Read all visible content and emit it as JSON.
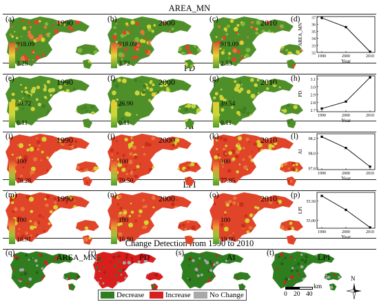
{
  "sections": [
    {
      "id": "area",
      "title": "AREA_MN",
      "panels": [
        {
          "label": "(a)",
          "year": "1990",
          "hi": "918.09",
          "lo": "3.26"
        },
        {
          "label": "(b)",
          "year": "2000",
          "hi": "918.09",
          "lo": "3.72"
        },
        {
          "label": "(c)",
          "year": "2010",
          "hi": "918.09",
          "lo": "2.53"
        }
      ],
      "chart_label": "(d)"
    },
    {
      "id": "pd",
      "title": "PD",
      "panels": [
        {
          "label": "(e)",
          "year": "1990",
          "hi": "30.72",
          "lo": "0.11"
        },
        {
          "label": "(f)",
          "year": "2000",
          "hi": "26.90",
          "lo": "0.11"
        },
        {
          "label": "(g)",
          "year": "2010",
          "hi": "39.54",
          "lo": "0.11"
        }
      ],
      "chart_label": "(h)"
    },
    {
      "id": "ai",
      "title": "AI",
      "panels": [
        {
          "label": "(i)",
          "year": "1990",
          "hi": "100",
          "lo": "78.28"
        },
        {
          "label": "(j)",
          "year": "2000",
          "hi": "100",
          "lo": "79.50"
        },
        {
          "label": "(k)",
          "year": "2010",
          "hi": "100",
          "lo": "77.85"
        }
      ],
      "chart_label": "(l)"
    },
    {
      "id": "lpi",
      "title": "LPI",
      "panels": [
        {
          "label": "(m)",
          "year": "1990",
          "hi": "100",
          "lo": "18.91"
        },
        {
          "label": "(n)",
          "year": "2000",
          "hi": "100",
          "lo": "16.80"
        },
        {
          "label": "(o)",
          "year": "2010",
          "hi": "100",
          "lo": "19.86"
        }
      ],
      "chart_label": "(p)"
    }
  ],
  "change": {
    "title": "Change Detection from 1990 to 2010",
    "panels": [
      {
        "label": "(q)",
        "name": "AREA_MN"
      },
      {
        "label": "(r)",
        "name": "PD"
      },
      {
        "label": "(s)",
        "name": "AI"
      },
      {
        "label": "(t)",
        "name": "LPI"
      }
    ],
    "legend": [
      "Decrease",
      "Increase",
      "No Change"
    ],
    "scale": {
      "ticks": [
        "0",
        "20",
        "40"
      ],
      "unit": "km"
    },
    "north": "N"
  },
  "colors": {
    "decrease": "#2e7d1f",
    "increase": "#d91e1e",
    "nochange": "#a8a8a8",
    "map_green": "#4f8f2a",
    "map_yellow": "#d8d230",
    "map_red": "#e0452a",
    "map_orange": "#e8753a"
  },
  "chart_data": [
    {
      "type": "line",
      "ylabel": "AREA_MN",
      "xlabel": "Year",
      "x": [
        1990,
        2000,
        2010
      ],
      "y": [
        36.9,
        35.6,
        32.1
      ],
      "yticks": [
        "32",
        "33",
        "34",
        "35",
        "36",
        "37"
      ],
      "ylim": [
        32,
        37.1
      ],
      "xticks": [
        "1990",
        "2000",
        "2010"
      ]
    },
    {
      "type": "line",
      "ylabel": "PD",
      "xlabel": "Year",
      "x": [
        1990,
        2000,
        2010
      ],
      "y": [
        2.72,
        2.81,
        3.12
      ],
      "yticks": [
        "2.7",
        "2.8",
        "2.9",
        "3.0",
        "3.1"
      ],
      "ylim": [
        2.68,
        3.14
      ],
      "xticks": [
        "1990",
        "2000",
        "2010"
      ]
    },
    {
      "type": "line",
      "ylabel": "AI",
      "xlabel": "Year",
      "x": [
        1990,
        2000,
        2010
      ],
      "y": [
        98.22,
        98.07,
        97.82
      ],
      "yticks": [
        "97.8",
        "98.0",
        "98.2"
      ],
      "ylim": [
        97.78,
        98.26
      ],
      "xticks": [
        "1990",
        "2000",
        "2010"
      ]
    },
    {
      "type": "line",
      "ylabel": "LPI",
      "xlabel": "Year",
      "x": [
        1990,
        2000,
        2010
      ],
      "y": [
        55.63,
        55.27,
        54.82
      ],
      "yticks": [
        "55.00",
        "55.50"
      ],
      "ylim": [
        54.8,
        55.72
      ],
      "xticks": [
        "1990",
        "2000",
        "2010"
      ]
    }
  ]
}
